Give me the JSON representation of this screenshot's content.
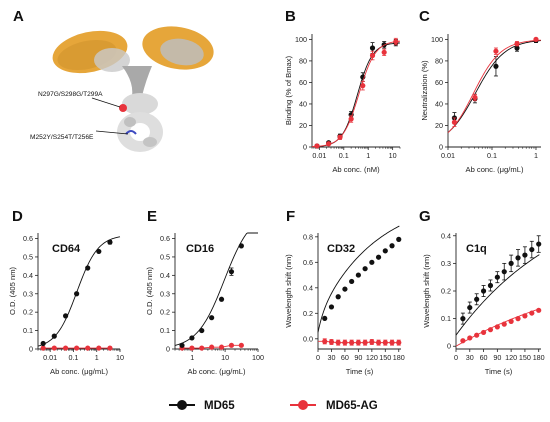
{
  "colors": {
    "md65": "#111111",
    "ag": "#e8333c",
    "fc_light": "#dcdcdc",
    "fab": "#e6a63a"
  },
  "structure": {
    "letter": "A",
    "mutation_labels": [
      "N297G/S298G/T299A",
      "M252Y/S254T/T256E"
    ]
  },
  "legend": {
    "items": [
      "MD65",
      "MD65-AG"
    ]
  },
  "chart_data": [
    {
      "id": "B",
      "type": "line",
      "panel_letter": "B",
      "tag": "",
      "ylabel": "Binding (% of Bmax)",
      "xlabel": "Ab conc. (nM)",
      "xscale": "log",
      "xlim": [
        0.005,
        20
      ],
      "ylim": [
        0,
        105
      ],
      "xticks": [
        0.01,
        0.1,
        1,
        10
      ],
      "xtick_labels": [
        "0.01",
        "0.1",
        "1",
        "10"
      ],
      "yticks": [
        0,
        20,
        40,
        60,
        80,
        100
      ],
      "ytick_labels": [
        "0",
        "20",
        "40",
        "60",
        "80",
        "100"
      ],
      "series": [
        {
          "name": "MD65",
          "x": [
            0.008,
            0.024,
            0.07,
            0.2,
            0.6,
            1.5,
            4.5,
            13.5
          ],
          "y": [
            1,
            4,
            10,
            30,
            65,
            92,
            95,
            97
          ],
          "err": [
            1,
            1,
            2,
            3,
            4,
            5,
            3,
            3
          ],
          "fit": {
            "bottom": 0,
            "top": 97,
            "ec50": 0.36,
            "hill": 1.4
          }
        },
        {
          "name": "MD65-AG",
          "x": [
            0.008,
            0.024,
            0.07,
            0.2,
            0.6,
            1.5,
            4.5,
            13.5
          ],
          "y": [
            1,
            3,
            9,
            26,
            57,
            85,
            88,
            98
          ],
          "err": [
            1,
            1,
            2,
            3,
            4,
            4,
            3,
            3
          ],
          "fit": {
            "bottom": 0,
            "top": 99,
            "ec50": 0.42,
            "hill": 1.3
          }
        }
      ]
    },
    {
      "id": "C",
      "type": "line",
      "panel_letter": "C",
      "tag": "",
      "ylabel": "Neutralization (%)",
      "xlabel": "Ab conc. (μg/mL)",
      "xscale": "log",
      "xlim": [
        0.01,
        1.3
      ],
      "ylim": [
        0,
        105
      ],
      "xticks": [
        0.01,
        0.1,
        1
      ],
      "xtick_labels": [
        "0.01",
        "0.1",
        "1"
      ],
      "yticks": [
        0,
        20,
        40,
        60,
        80,
        100
      ],
      "ytick_labels": [
        "0",
        "20",
        "40",
        "60",
        "80",
        "100"
      ],
      "series": [
        {
          "name": "MD65",
          "x": [
            0.014,
            0.041,
            0.123,
            0.37,
            1.0
          ],
          "y": [
            27,
            45,
            75,
            92,
            99
          ],
          "err": [
            5,
            4,
            9,
            3,
            2
          ],
          "fit": {
            "bottom": 0,
            "top": 100,
            "ec50": 0.042,
            "hill": 1.3
          }
        },
        {
          "name": "MD65-AG",
          "x": [
            0.014,
            0.041,
            0.123,
            0.37,
            1.0
          ],
          "y": [
            23,
            46,
            89,
            96,
            100
          ],
          "err": [
            4,
            3,
            3,
            2,
            1
          ],
          "fit": {
            "bottom": 0,
            "top": 100,
            "ec50": 0.038,
            "hill": 1.4
          }
        }
      ]
    },
    {
      "id": "D",
      "type": "line",
      "panel_letter": "D",
      "tag": "CD64",
      "ylabel": "O.D. (405 nm)",
      "xlabel": "Ab conc. (μg/mL)",
      "xscale": "log",
      "xlim": [
        0.003,
        10
      ],
      "ylim": [
        0,
        0.63
      ],
      "xticks": [
        0.01,
        0.1,
        1,
        10
      ],
      "xtick_labels": [
        "0.01",
        "0.1",
        "1",
        "10"
      ],
      "yticks": [
        0,
        0.1,
        0.2,
        0.3,
        0.4,
        0.5,
        0.6
      ],
      "ytick_labels": [
        "0",
        "0.1",
        "0.2",
        "0.3",
        "0.4",
        "0.5",
        "0.6"
      ],
      "series": [
        {
          "name": "MD65",
          "x": [
            0.005,
            0.015,
            0.046,
            0.137,
            0.41,
            1.23,
            3.7
          ],
          "y": [
            0.03,
            0.07,
            0.18,
            0.3,
            0.44,
            0.53,
            0.58
          ],
          "err": [
            0,
            0,
            0,
            0,
            0,
            0,
            0.01
          ],
          "fit": {
            "bottom": 0,
            "top": 0.62,
            "ec50": 0.14,
            "hill": 0.95
          }
        },
        {
          "name": "MD65-AG",
          "x": [
            0.005,
            0.015,
            0.046,
            0.137,
            0.41,
            1.23,
            3.7
          ],
          "y": [
            0.005,
            0.005,
            0.005,
            0.005,
            0.005,
            0.005,
            0.005
          ],
          "err": [
            0,
            0,
            0,
            0,
            0,
            0,
            0
          ]
        }
      ]
    },
    {
      "id": "E",
      "type": "line",
      "panel_letter": "E",
      "tag": "CD16",
      "ylabel": "O.D. (405 nm)",
      "xlabel": "Ab conc. (μg/mL)",
      "xscale": "log",
      "xlim": [
        0.3,
        100
      ],
      "ylim": [
        0,
        0.63
      ],
      "xticks": [
        1,
        10,
        100
      ],
      "xtick_labels": [
        "1",
        "10",
        "100"
      ],
      "yticks": [
        0,
        0.1,
        0.2,
        0.3,
        0.4,
        0.5,
        0.6
      ],
      "ytick_labels": [
        "0",
        "0.1",
        "0.2",
        "0.3",
        "0.4",
        "0.5",
        "0.6"
      ],
      "series": [
        {
          "name": "MD65",
          "x": [
            0.49,
            0.98,
            1.95,
            3.9,
            7.8,
            15.6,
            31.2
          ],
          "y": [
            0.02,
            0.06,
            0.1,
            0.17,
            0.27,
            0.42,
            0.56
          ],
          "err": [
            0,
            0,
            0,
            0,
            0,
            0.02,
            0
          ],
          "fit": {
            "bottom": 0,
            "top": 0.75,
            "ec50": 9.5,
            "hill": 1.05
          }
        },
        {
          "name": "MD65-AG",
          "x": [
            0.49,
            0.98,
            1.95,
            3.9,
            7.8,
            15.6,
            31.2
          ],
          "y": [
            0.005,
            0.005,
            0.005,
            0.01,
            0.01,
            0.02,
            0.02
          ],
          "err": [
            0,
            0,
            0,
            0,
            0,
            0,
            0
          ]
        }
      ]
    },
    {
      "id": "F",
      "type": "line",
      "panel_letter": "F",
      "tag": "CD32",
      "ylabel": "Wavelength shift (nm)",
      "xlabel": "Time (s)",
      "xscale": "linear",
      "xlim": [
        0,
        185
      ],
      "ylim": [
        -0.08,
        0.83
      ],
      "xticks": [
        0,
        30,
        60,
        90,
        120,
        150,
        180
      ],
      "xtick_labels": [
        "0",
        "30",
        "60",
        "90",
        "120",
        "150",
        "180"
      ],
      "yticks": [
        0,
        0.2,
        0.4,
        0.6,
        0.8
      ],
      "ytick_labels": [
        "0.0",
        "0.2",
        "0.4",
        "0.6",
        "0.8"
      ],
      "series": [
        {
          "name": "MD65",
          "x": [
            15,
            30,
            45,
            60,
            75,
            90,
            105,
            120,
            135,
            150,
            165,
            180
          ],
          "y": [
            0.16,
            0.25,
            0.33,
            0.39,
            0.45,
            0.5,
            0.55,
            0.6,
            0.64,
            0.69,
            0.73,
            0.78
          ],
          "err": [
            0,
            0,
            0,
            0,
            0,
            0,
            0,
            0,
            0,
            0,
            0,
            0
          ],
          "fit": {
            "kind": "assoc",
            "a": 0.05,
            "k": 0.12,
            "amp": 0.95,
            "tau": 130
          }
        },
        {
          "name": "MD65-AG",
          "x": [
            15,
            30,
            45,
            60,
            75,
            90,
            105,
            120,
            135,
            150,
            165,
            180
          ],
          "y": [
            -0.02,
            -0.025,
            -0.03,
            -0.03,
            -0.03,
            -0.03,
            -0.03,
            -0.025,
            -0.03,
            -0.03,
            -0.03,
            -0.03
          ],
          "err": [
            0.02,
            0.02,
            0.02,
            0.02,
            0.02,
            0.02,
            0.02,
            0.02,
            0.02,
            0.02,
            0.02,
            0.02
          ]
        }
      ]
    },
    {
      "id": "G",
      "type": "line",
      "panel_letter": "G",
      "tag": "C1q",
      "ylabel": "Wavelength shift (nm)",
      "xlabel": "Time (s)",
      "xscale": "linear",
      "xlim": [
        0,
        185
      ],
      "ylim": [
        -0.01,
        0.41
      ],
      "xticks": [
        0,
        30,
        60,
        90,
        120,
        150,
        180
      ],
      "xtick_labels": [
        "0",
        "30",
        "60",
        "90",
        "120",
        "150",
        "180"
      ],
      "yticks": [
        0,
        0.1,
        0.2,
        0.3,
        0.4
      ],
      "ytick_labels": [
        "0",
        "0.1",
        "0.2",
        "0.3",
        "0.4"
      ],
      "series": [
        {
          "name": "MD65",
          "x": [
            15,
            30,
            45,
            60,
            75,
            90,
            105,
            120,
            135,
            150,
            165,
            180
          ],
          "y": [
            0.1,
            0.14,
            0.17,
            0.2,
            0.22,
            0.25,
            0.27,
            0.3,
            0.32,
            0.33,
            0.35,
            0.37
          ],
          "err": [
            0.02,
            0.02,
            0.02,
            0.02,
            0.02,
            0.02,
            0.03,
            0.03,
            0.03,
            0.03,
            0.03,
            0.03
          ],
          "fit": {
            "kind": "assoc",
            "a": 0.04,
            "k": 0.0,
            "amp": 0.55,
            "tau": 240
          }
        },
        {
          "name": "MD65-AG",
          "x": [
            15,
            30,
            45,
            60,
            75,
            90,
            105,
            120,
            135,
            150,
            165,
            180
          ],
          "y": [
            0.02,
            0.03,
            0.04,
            0.05,
            0.06,
            0.07,
            0.08,
            0.09,
            0.1,
            0.11,
            0.12,
            0.13
          ],
          "err": [
            0,
            0,
            0,
            0,
            0,
            0,
            0,
            0,
            0,
            0,
            0,
            0
          ],
          "fit": {
            "kind": "assoc",
            "a": 0.0,
            "k": 0.0,
            "amp": 0.32,
            "tau": 330
          }
        }
      ]
    }
  ]
}
